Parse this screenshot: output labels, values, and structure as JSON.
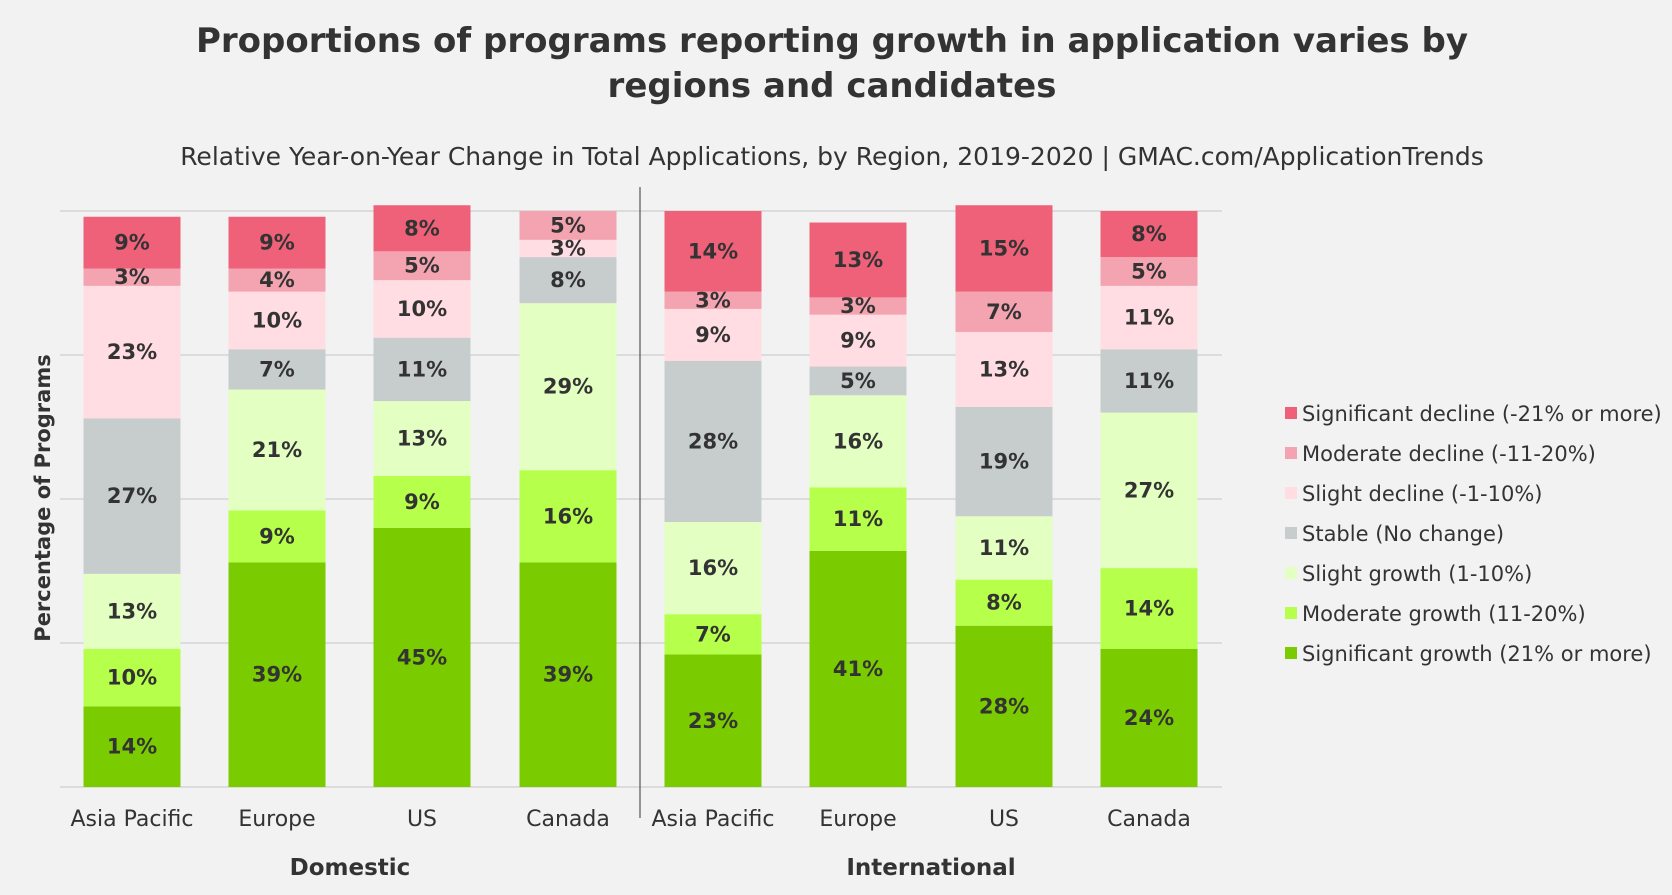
{
  "chart_data": {
    "type": "bar",
    "stacked": true,
    "title": "Proportions of programs reporting growth in application varies by regions and candidates",
    "title_lines": [
      "Proportions of programs reporting growth in application varies by",
      "regions and candidates"
    ],
    "subtitle": "Relative Year-on-Year Change in Total Applications, by Region, 2019-2020 | GMAC.com/ApplicationTrends",
    "ylabel": "Percentage of Programs",
    "xlabel": "",
    "ylim": [
      0,
      100
    ],
    "grid": true,
    "legend_position": "right",
    "groups": [
      {
        "label": "Domestic",
        "categories": [
          "Asia Pacific",
          "Europe",
          "US",
          "Canada"
        ]
      },
      {
        "label": "International",
        "categories": [
          "Asia Pacific",
          "Europe",
          "US",
          "Canada"
        ]
      }
    ],
    "categories": [
      "Domestic - Asia Pacific",
      "Domestic - Europe",
      "Domestic - US",
      "Domestic - Canada",
      "International - Asia Pacific",
      "International - Europe",
      "International - US",
      "International - Canada"
    ],
    "series": [
      {
        "name": "Significant growth (21% or more)",
        "color": "#7acc00",
        "values": [
          14,
          39,
          45,
          39,
          23,
          41,
          28,
          24
        ]
      },
      {
        "name": "Moderate growth (11-20%)",
        "color": "#b6ff4a",
        "values": [
          10,
          9,
          9,
          16,
          7,
          11,
          8,
          14
        ]
      },
      {
        "name": "Slight growth (1-10%)",
        "color": "#e3ffc2",
        "values": [
          13,
          21,
          13,
          29,
          16,
          16,
          11,
          27
        ]
      },
      {
        "name": "Stable (No change)",
        "color": "#c7cdcd",
        "values": [
          27,
          7,
          11,
          8,
          28,
          5,
          19,
          11
        ]
      },
      {
        "name": "Slight decline (-1-10%)",
        "color": "#ffdde3",
        "values": [
          23,
          10,
          10,
          3,
          9,
          9,
          13,
          11
        ]
      },
      {
        "name": "Moderate decline (-11-20%)",
        "color": "#f4a3b0",
        "values": [
          3,
          4,
          5,
          5,
          3,
          3,
          7,
          5
        ]
      },
      {
        "name": "Significant decline (-21% or more)",
        "color": "#ef6079",
        "values": [
          9,
          9,
          8,
          0,
          14,
          13,
          15,
          8
        ]
      }
    ],
    "data_labels_suffix": "%"
  }
}
